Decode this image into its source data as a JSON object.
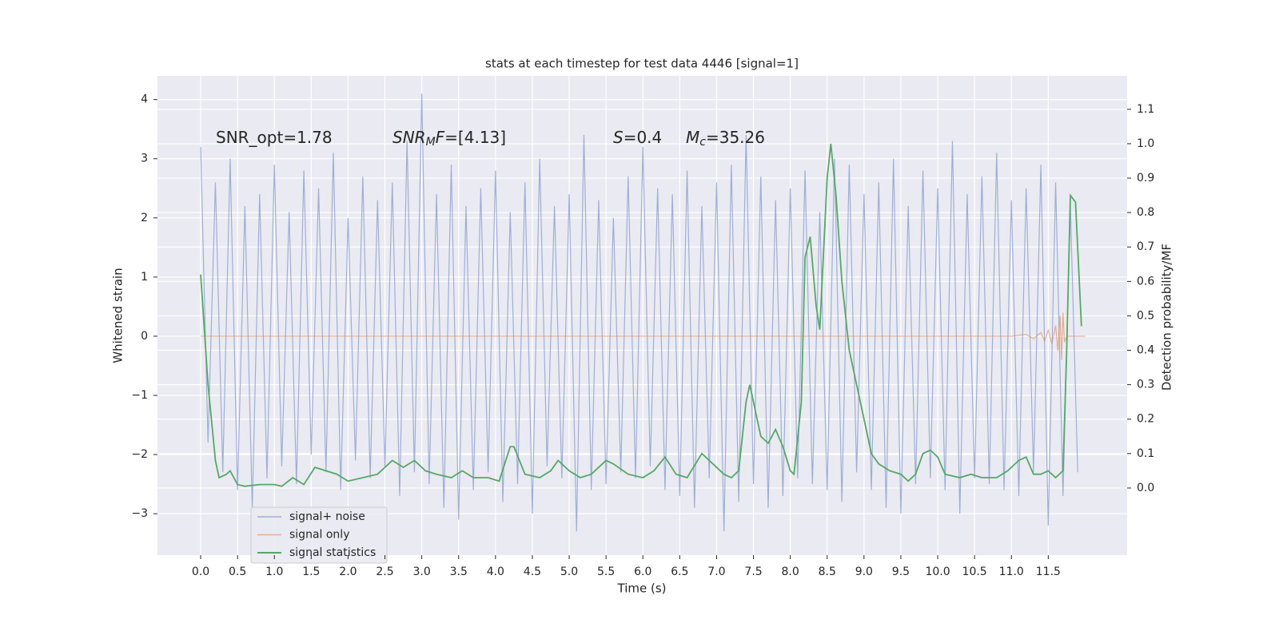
{
  "chart_data": {
    "type": "line",
    "title": "stats at each timestep for test data 4446 [signal=1]",
    "xlabel": "Time (s)",
    "ylabel": "Whitened strain",
    "y2label": "Detection probability/MF",
    "xlim": [
      -0.586,
      12.57
    ],
    "ylim": [
      -3.7,
      4.4
    ],
    "y2lim": [
      -0.195,
      1.197
    ],
    "xticks": [
      {
        "value": 0,
        "label": "0.0"
      },
      0.5,
      {
        "value": 1,
        "label": "1.0"
      },
      1.5,
      {
        "value": 2,
        "label": "2.0"
      },
      2.5,
      {
        "value": 3,
        "label": "3.0"
      },
      3.5,
      {
        "value": 4,
        "label": "4.0"
      },
      4.5,
      {
        "value": 5,
        "label": "5.0"
      },
      5.5,
      {
        "value": 6,
        "label": "6.0"
      },
      6.5,
      {
        "value": 7,
        "label": "7.0"
      },
      7.5,
      {
        "value": 8,
        "label": "8.0"
      },
      8.5,
      {
        "value": 9,
        "label": "9.0"
      },
      9.5,
      {
        "value": 10,
        "label": "10.0"
      },
      10.5,
      {
        "value": 11,
        "label": "11.0"
      },
      11.5
    ],
    "yticks": [
      {
        "value": -3,
        "label": "−3"
      },
      {
        "value": -2,
        "label": "−2"
      },
      {
        "value": -1,
        "label": "−1"
      },
      0,
      1,
      2,
      3,
      4
    ],
    "y2ticks": [
      {
        "value": 0,
        "label": "0.0"
      },
      0.1,
      0.2,
      0.3,
      0.4,
      0.5,
      0.6,
      0.7,
      0.8,
      0.9,
      {
        "value": 1,
        "label": "1.0"
      },
      1.1
    ],
    "grid": true,
    "legend": "lower left",
    "annotations": [
      [
        {
          "text": "SNR_opt=1.78"
        }
      ],
      [
        {
          "text": "SNR",
          "italic": true
        },
        {
          "text": "M",
          "italic": true,
          "sub": true
        },
        {
          "text": "F",
          "italic": true
        },
        {
          "text": "=[4.13]"
        }
      ],
      [
        {
          "text": "S",
          "italic": true
        },
        {
          "text": "=0.4"
        }
      ],
      [
        {
          "text": "M",
          "italic": true
        },
        {
          "text": "c",
          "italic": true,
          "sub": true
        },
        {
          "text": "=35.26"
        }
      ]
    ],
    "series": [
      {
        "name": "signal+ noise",
        "color": "#91a5cf",
        "x": [
          0,
          0.1,
          0.2,
          0.3,
          0.4,
          0.5,
          0.6,
          0.7,
          0.8,
          0.9,
          1,
          1.1,
          1.2,
          1.3,
          1.4,
          1.5,
          1.6,
          1.7,
          1.8,
          1.9,
          2,
          2.1,
          2.2,
          2.3,
          2.4,
          2.5,
          2.6,
          2.7,
          2.8,
          2.9,
          3,
          3.1,
          3.2,
          3.3,
          3.4,
          3.5,
          3.6,
          3.7,
          3.8,
          3.9,
          4,
          4.1,
          4.2,
          4.3,
          4.4,
          4.5,
          4.6,
          4.7,
          4.8,
          4.9,
          5,
          5.1,
          5.2,
          5.3,
          5.4,
          5.5,
          5.6,
          5.7,
          5.8,
          5.9,
          6,
          6.1,
          6.2,
          6.3,
          6.4,
          6.5,
          6.6,
          6.7,
          6.8,
          6.9,
          7,
          7.1,
          7.2,
          7.3,
          7.4,
          7.5,
          7.6,
          7.7,
          7.8,
          7.9,
          8,
          8.1,
          8.2,
          8.3,
          8.4,
          8.5,
          8.6,
          8.7,
          8.8,
          8.9,
          9,
          9.1,
          9.2,
          9.3,
          9.4,
          9.5,
          9.6,
          9.7,
          9.8,
          9.9,
          10,
          10.1,
          10.2,
          10.3,
          10.4,
          10.5,
          10.6,
          10.7,
          10.8,
          10.9,
          11,
          11.1,
          11.2,
          11.3,
          11.4,
          11.5,
          11.6,
          11.7,
          11.8,
          11.9
        ],
        "values": [
          3.2,
          -1.8,
          2.6,
          -2.3,
          3.0,
          -2.6,
          2.2,
          -2.9,
          2.4,
          -2.4,
          2.9,
          -2.2,
          2.1,
          -2.5,
          2.8,
          -2.0,
          2.5,
          -2.3,
          3.1,
          -2.6,
          2.0,
          -2.1,
          2.7,
          -2.4,
          2.3,
          -2.2,
          2.6,
          -2.7,
          3.3,
          -2.3,
          4.1,
          -2.5,
          2.4,
          -2.9,
          2.9,
          -3.1,
          2.2,
          -2.6,
          2.5,
          -2.3,
          2.8,
          -2.8,
          2.1,
          -2.5,
          2.6,
          -3.0,
          3.0,
          -2.2,
          2.2,
          -2.4,
          2.4,
          -3.3,
          3.4,
          -2.6,
          2.3,
          -2.5,
          2.0,
          -2.3,
          2.7,
          -2.4,
          3.2,
          -2.2,
          2.5,
          -2.6,
          2.4,
          -2.7,
          2.8,
          -2.9,
          2.2,
          -2.4,
          2.6,
          -3.3,
          2.9,
          -2.8,
          3.4,
          -2.5,
          2.7,
          -2.9,
          2.3,
          -2.7,
          2.5,
          -2.4,
          2.8,
          -2.5,
          2.1,
          -2.6,
          3.0,
          -2.8,
          2.9,
          -2.3,
          2.4,
          -2.6,
          2.6,
          -2.9,
          3.0,
          -3.0,
          2.2,
          -2.5,
          2.8,
          -2.4,
          2.5,
          -2.6,
          3.3,
          -3.0,
          2.4,
          -2.4,
          2.7,
          -2.5,
          3.1,
          -2.6,
          2.3,
          -2.7,
          2.5,
          -2.3,
          2.9,
          -3.2,
          2.6,
          -2.7,
          2.2,
          -2.3
        ]
      },
      {
        "name": "signal only",
        "color": "#dd8452",
        "x": [
          0,
          11.0,
          11.2,
          11.3,
          11.4,
          11.45,
          11.5,
          11.55,
          11.6,
          11.63,
          11.66,
          11.68,
          11.7,
          11.72,
          11.75,
          12.0
        ],
        "values": [
          0,
          0,
          0.03,
          -0.04,
          0.06,
          -0.08,
          0.1,
          -0.13,
          0.18,
          -0.25,
          0.35,
          -0.4,
          0.4,
          -0.1,
          0,
          0
        ]
      },
      {
        "name": "signal statistics",
        "color": "#55a868",
        "axis": "y2",
        "x": [
          0,
          0.1,
          0.2,
          0.25,
          0.35,
          0.4,
          0.5,
          0.6,
          0.8,
          1.0,
          1.1,
          1.25,
          1.4,
          1.55,
          1.7,
          1.85,
          2.0,
          2.2,
          2.4,
          2.6,
          2.75,
          2.9,
          3.05,
          3.2,
          3.4,
          3.55,
          3.7,
          3.9,
          4.05,
          4.2,
          4.25,
          4.4,
          4.6,
          4.75,
          4.85,
          5.0,
          5.15,
          5.3,
          5.5,
          5.6,
          5.8,
          6.0,
          6.15,
          6.3,
          6.45,
          6.6,
          6.8,
          6.95,
          7.1,
          7.2,
          7.3,
          7.4,
          7.45,
          7.6,
          7.7,
          7.8,
          7.9,
          8.0,
          8.05,
          8.15,
          8.2,
          8.27,
          8.35,
          8.4,
          8.5,
          8.55,
          8.62,
          8.7,
          8.8,
          8.9,
          9.0,
          9.1,
          9.2,
          9.35,
          9.5,
          9.6,
          9.7,
          9.8,
          9.9,
          10.0,
          10.1,
          10.3,
          10.45,
          10.6,
          10.8,
          10.95,
          11.1,
          11.2,
          11.3,
          11.4,
          11.5,
          11.6,
          11.7,
          11.75,
          11.8,
          11.87,
          11.95
        ],
        "values": [
          0.62,
          0.3,
          0.08,
          0.03,
          0.04,
          0.05,
          0.01,
          0.005,
          0.01,
          0.01,
          0.005,
          0.03,
          0.01,
          0.06,
          0.05,
          0.04,
          0.02,
          0.03,
          0.04,
          0.08,
          0.06,
          0.08,
          0.05,
          0.04,
          0.03,
          0.05,
          0.03,
          0.03,
          0.02,
          0.12,
          0.12,
          0.04,
          0.03,
          0.05,
          0.08,
          0.05,
          0.03,
          0.04,
          0.08,
          0.07,
          0.04,
          0.03,
          0.05,
          0.09,
          0.04,
          0.03,
          0.1,
          0.07,
          0.04,
          0.03,
          0.05,
          0.25,
          0.3,
          0.15,
          0.13,
          0.17,
          0.12,
          0.05,
          0.04,
          0.25,
          0.67,
          0.73,
          0.53,
          0.46,
          0.9,
          1.0,
          0.85,
          0.6,
          0.4,
          0.3,
          0.2,
          0.1,
          0.07,
          0.05,
          0.04,
          0.02,
          0.04,
          0.1,
          0.11,
          0.09,
          0.04,
          0.03,
          0.04,
          0.03,
          0.03,
          0.05,
          0.08,
          0.09,
          0.04,
          0.04,
          0.05,
          0.03,
          0.05,
          0.4,
          0.85,
          0.83,
          0.47
        ]
      }
    ]
  }
}
